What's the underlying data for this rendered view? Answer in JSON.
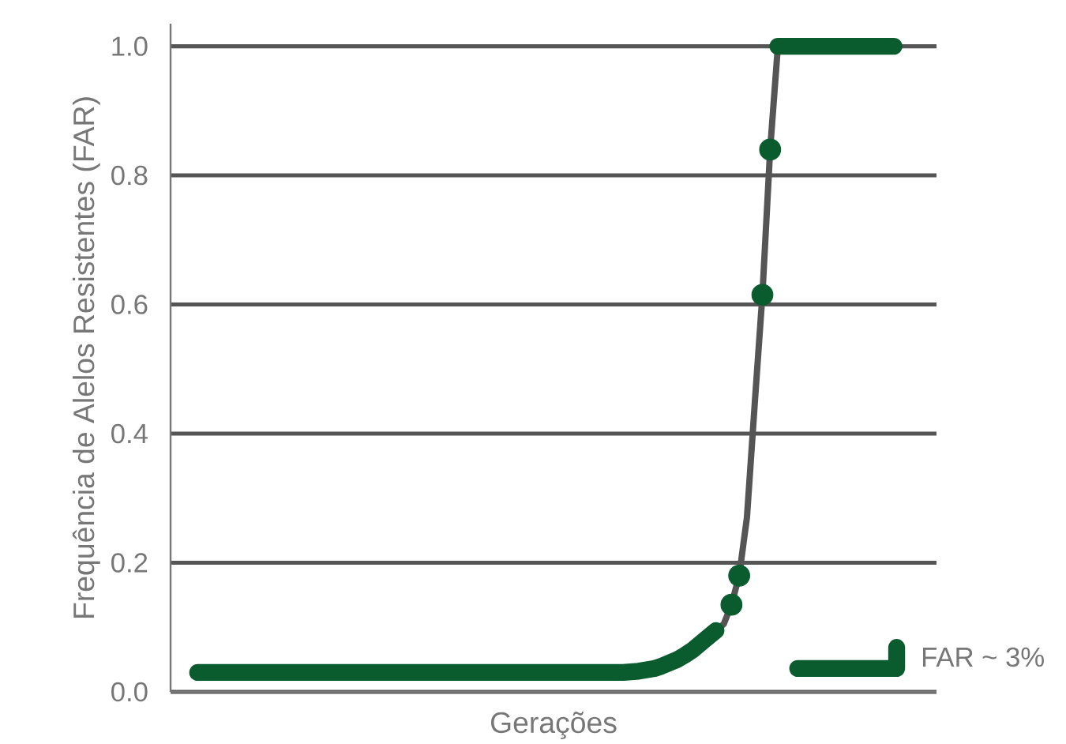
{
  "chart_data": {
    "type": "line",
    "xlabel": "Gerações",
    "ylabel": "Frequência de Alelos Resistentes (FAR)",
    "categories": [
      null,
      null,
      null,
      null,
      null,
      null,
      null,
      null,
      null,
      null,
      null,
      null,
      null,
      null,
      null,
      null,
      null,
      null,
      null,
      null,
      null,
      null,
      null,
      null,
      null,
      null,
      null,
      null,
      null,
      null,
      null,
      null,
      null,
      null,
      null,
      null,
      null,
      null,
      null,
      null,
      null,
      null,
      null,
      null,
      null,
      null,
      null,
      null,
      null,
      null,
      null,
      null,
      null,
      null,
      null,
      null,
      null,
      null,
      null,
      null,
      null,
      null,
      null,
      null,
      null,
      null,
      null,
      null,
      null,
      null,
      null,
      null,
      null,
      null,
      null,
      null,
      null,
      null,
      null,
      null,
      null,
      null,
      null,
      null,
      null,
      null,
      null,
      null,
      null,
      null,
      null,
      null,
      null,
      null,
      null,
      null,
      null,
      null,
      null
    ],
    "series": [
      {
        "color": "#555555",
        "values": [
          null,
          null,
          null,
          null,
          null,
          null,
          null,
          null,
          null,
          null,
          null,
          null,
          null,
          null,
          null,
          null,
          null,
          null,
          null,
          null,
          null,
          null,
          null,
          null,
          null,
          null,
          null,
          null,
          null,
          null,
          null,
          null,
          null,
          null,
          null,
          null,
          null,
          null,
          null,
          null,
          null,
          null,
          null,
          null,
          null,
          null,
          null,
          null,
          null,
          null,
          null,
          null,
          null,
          null,
          null,
          null,
          null,
          null,
          null,
          null,
          null,
          null,
          null,
          null,
          null,
          null,
          null,
          null,
          null,
          null,
          0.095,
          0.105,
          0.135,
          0.18,
          0.27,
          0.445,
          0.615,
          0.84,
          1.0,
          null,
          null,
          null,
          null,
          null,
          null,
          null,
          null,
          null,
          null,
          null,
          null,
          null,
          null,
          null,
          null,
          null,
          null,
          null,
          null
        ]
      },
      {
        "color": "#0a5c2e",
        "values": [
          null,
          null,
          null,
          0.03,
          0.03,
          0.03,
          0.03,
          0.03,
          0.03,
          0.03,
          0.03,
          0.03,
          0.03,
          0.03,
          0.03,
          0.03,
          0.03,
          0.03,
          0.03,
          0.03,
          0.03,
          0.03,
          0.03,
          0.03,
          0.03,
          0.03,
          0.03,
          0.03,
          0.03,
          0.03,
          0.03,
          0.03,
          0.03,
          0.03,
          0.03,
          0.03,
          0.03,
          0.03,
          0.03,
          0.03,
          0.03,
          0.03,
          0.03,
          0.03,
          0.03,
          0.03,
          0.03,
          0.03,
          0.03,
          0.03,
          0.03,
          0.03,
          0.03,
          0.03,
          0.03,
          0.03,
          0.03,
          0.03,
          0.03,
          0.031,
          0.032,
          0.034,
          0.036,
          0.04,
          0.045,
          0.05,
          0.057,
          0.065,
          0.075,
          0.085,
          0.095,
          null,
          null,
          null,
          null,
          null,
          null,
          null,
          1.0,
          1.0,
          1.0,
          1.0,
          1.0,
          1.0,
          1.0,
          1.0,
          1.0,
          1.0,
          1.0,
          1.0,
          1.0,
          1.0,
          1.0,
          1.0,
          null,
          null,
          null,
          null,
          null
        ]
      },
      {
        "type": "scatter",
        "marker": "circle",
        "color": "#0a5c2e",
        "values": [
          null,
          null,
          null,
          null,
          null,
          null,
          null,
          null,
          null,
          null,
          null,
          null,
          null,
          null,
          null,
          null,
          null,
          null,
          null,
          null,
          null,
          null,
          null,
          null,
          null,
          null,
          null,
          null,
          null,
          null,
          null,
          null,
          null,
          null,
          null,
          null,
          null,
          null,
          null,
          null,
          null,
          null,
          null,
          null,
          null,
          null,
          null,
          null,
          null,
          null,
          null,
          null,
          null,
          null,
          null,
          null,
          null,
          null,
          null,
          null,
          null,
          null,
          null,
          null,
          null,
          null,
          null,
          null,
          null,
          null,
          null,
          null,
          0.135,
          0.18,
          null,
          null,
          0.615,
          0.84,
          null,
          null,
          null,
          null,
          null,
          null,
          null,
          null,
          null,
          null,
          null,
          null,
          null,
          null,
          null,
          null,
          null,
          null,
          null,
          null,
          null
        ]
      }
    ],
    "ylim": [
      0,
      1.035
    ],
    "yticks": [
      {
        "value": 0,
        "label": "0.0"
      },
      {
        "value": 0.2,
        "label": "0.2"
      },
      {
        "value": 0.4,
        "label": "0.4"
      },
      {
        "value": 0.6,
        "label": "0.6"
      },
      {
        "value": 0.8,
        "label": "0.8"
      },
      {
        "value": 1.0,
        "label": "1.0"
      }
    ],
    "grid": "y",
    "annotations": [
      "FAR ~ 3%"
    ]
  }
}
